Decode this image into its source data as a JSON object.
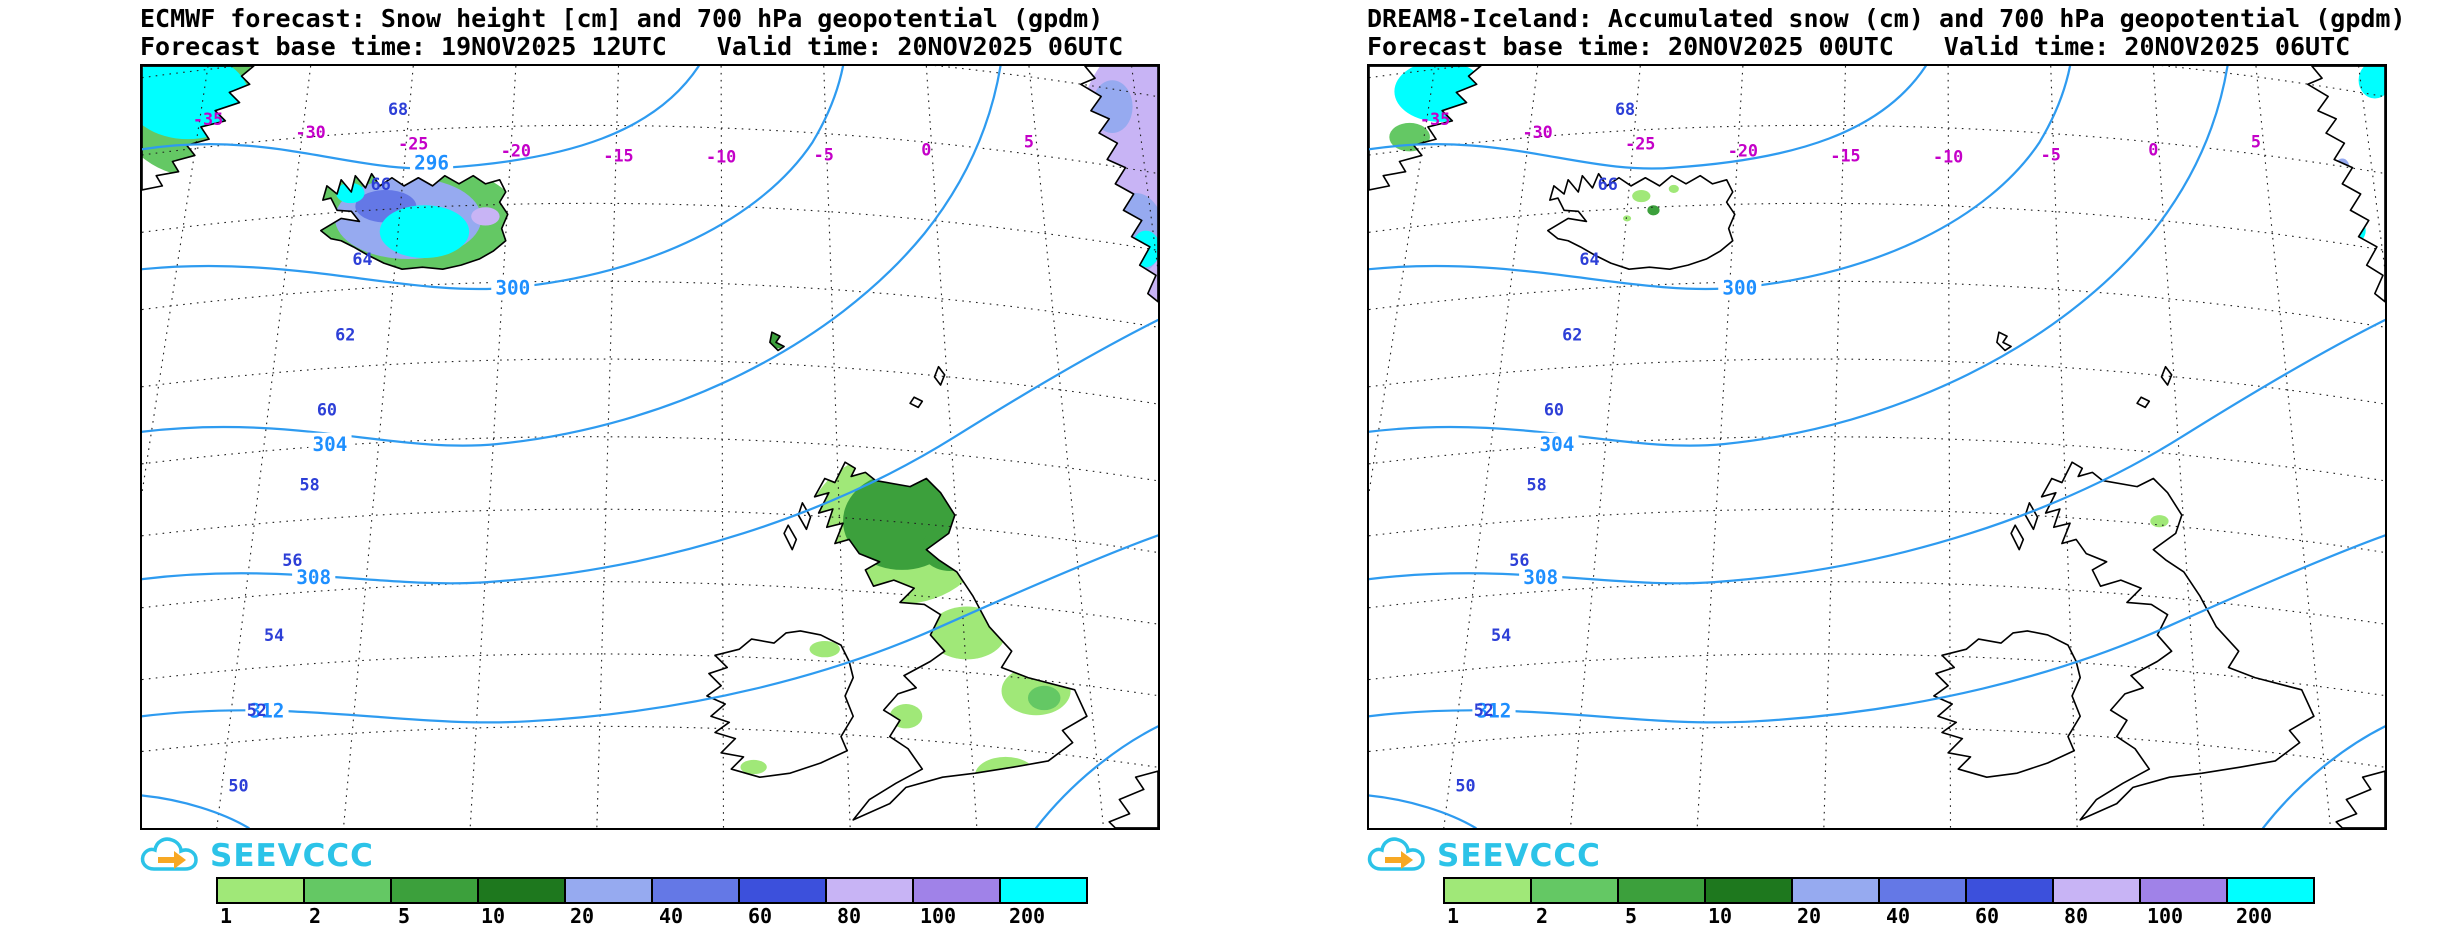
{
  "panels": [
    {
      "id": "ecmwf",
      "title": "ECMWF forecast: Snow height [cm] and 700 hPa geopotential (gpdm)",
      "base_time": "Forecast base time: 19NOV2025 12UTC",
      "valid_time": "Valid time: 20NOV2025 06UTC",
      "contour_labels": [
        "296",
        "300",
        "304",
        "308",
        "312"
      ]
    },
    {
      "id": "dream8",
      "title": "DREAM8-Iceland: Accumulated snow (cm) and 700 hPa geopotential (gpdm)",
      "base_time": "Forecast base time: 20NOV2025 00UTC",
      "valid_time": "Valid time: 20NOV2025 06UTC",
      "contour_labels": [
        "300",
        "304",
        "308",
        "312"
      ]
    }
  ],
  "map": {
    "latitude_labels": [
      "68",
      "66",
      "64",
      "62",
      "60",
      "58",
      "56",
      "54",
      "52",
      "50"
    ],
    "longitude_labels": [
      "-35",
      "-30",
      "-25",
      "-20",
      "-15",
      "-10",
      "-5",
      "0",
      "5"
    ]
  },
  "legend": {
    "values": [
      "1",
      "2",
      "5",
      "10",
      "20",
      "40",
      "60",
      "80",
      "100",
      "200"
    ],
    "colors": [
      "#a0e878",
      "#64c864",
      "#3ca03c",
      "#1e781e",
      "#96aaf0",
      "#6478e6",
      "#3c50dc",
      "#c8b4f5",
      "#a082e8",
      "#00ffff"
    ]
  },
  "logo": {
    "text": "SEEVCCC",
    "color": "#2cc3e8",
    "arrow_color": "#f7a823"
  },
  "colors": {
    "contour_line": "#2e9bf0",
    "contour_label": "#1e8fff",
    "latitude_label": "#2d3fd7",
    "longitude_label": "#c400c8",
    "coastline": "#000000",
    "graticule": "#222222"
  }
}
